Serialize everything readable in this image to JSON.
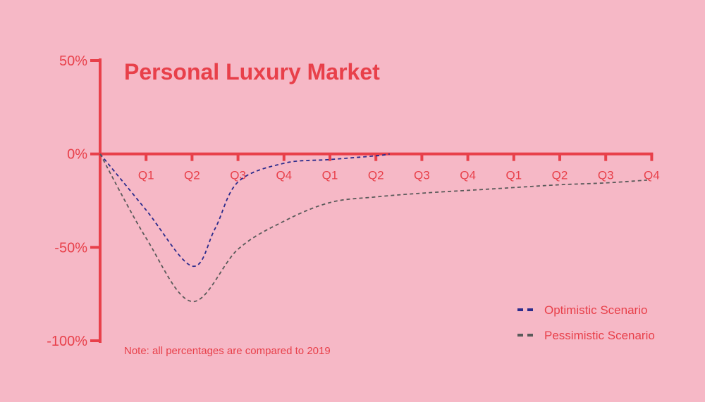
{
  "chart_data": {
    "type": "line",
    "title": "Personal Luxury Market",
    "note": "Note: all percentages are compared to 2019",
    "xlabel": "",
    "ylabel": "",
    "ylim": [
      -100,
      50
    ],
    "yticks": [
      {
        "value": 50,
        "label": "50%"
      },
      {
        "value": 0,
        "label": "0%"
      },
      {
        "value": -50,
        "label": "-50%"
      },
      {
        "value": -100,
        "label": "-100%"
      }
    ],
    "xlim": [
      0,
      12
    ],
    "categories": [
      "Q1",
      "Q2",
      "Q3",
      "Q4",
      "Q1",
      "Q2",
      "Q3",
      "Q4",
      "Q1",
      "Q2",
      "Q3",
      "Q4"
    ],
    "grid": false,
    "legend_position": "bottom-right",
    "colors": {
      "background": "#f6b8c6",
      "axis": "#e8404a",
      "text": "#e8404a"
    },
    "series": [
      {
        "name": "Optimistic Scenario",
        "color": "#2b2b8c",
        "x": [
          0,
          1,
          2,
          2.5,
          3,
          4,
          5,
          6,
          6.3
        ],
        "y": [
          0,
          -30,
          -60,
          -40,
          -15,
          -5,
          -3,
          -1,
          0
        ]
      },
      {
        "name": "Pessimistic Scenario",
        "color": "#5a5a5a",
        "x": [
          0,
          1,
          2,
          3,
          4,
          5,
          6,
          7,
          8,
          9,
          10,
          11,
          11.9
        ],
        "y": [
          0,
          -45,
          -79,
          -51,
          -36,
          -26,
          -23,
          -21,
          -19.5,
          -18,
          -16.5,
          -15.5,
          -14
        ]
      }
    ]
  }
}
